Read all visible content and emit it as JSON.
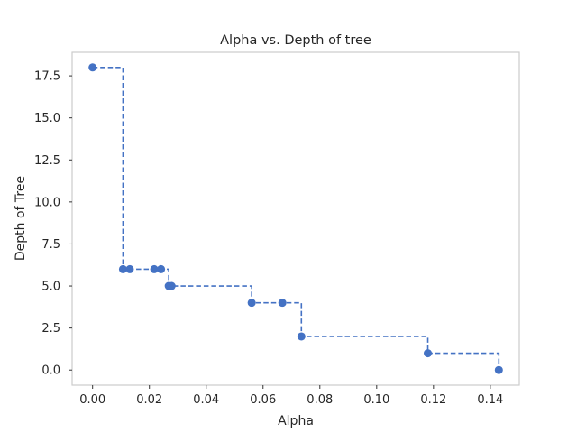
{
  "chart_data": {
    "type": "line",
    "title": "Alpha vs. Depth of tree",
    "xlabel": "Alpha",
    "ylabel": "Depth of Tree",
    "xlim": [
      -0.0072,
      0.1502
    ],
    "ylim": [
      -0.9,
      18.9
    ],
    "xticks": [
      0.0,
      0.02,
      0.04,
      0.06,
      0.08,
      0.1,
      0.12,
      0.14
    ],
    "xtick_labels": [
      "0.00",
      "0.02",
      "0.04",
      "0.06",
      "0.08",
      "0.10",
      "0.12",
      "0.14"
    ],
    "yticks": [
      0,
      2.5,
      5,
      7.5,
      10,
      12.5,
      15,
      17.5
    ],
    "ytick_labels": [
      "0.0",
      "2.5",
      "5.0",
      "7.5",
      "10.0",
      "12.5",
      "15.0",
      "17.5"
    ],
    "grid": false,
    "drawstyle": "steps-post",
    "linestyle": "dashed",
    "marker": "circle",
    "color": "#4472c4",
    "series": [
      {
        "x": [
          0.0,
          0.0107,
          0.0131,
          0.0217,
          0.0241,
          0.0268,
          0.0278,
          0.056,
          0.0668,
          0.0735,
          0.118,
          0.143
        ],
        "y": [
          18,
          6,
          6,
          6,
          6,
          5,
          5,
          4,
          4,
          2,
          1,
          0
        ]
      }
    ]
  }
}
